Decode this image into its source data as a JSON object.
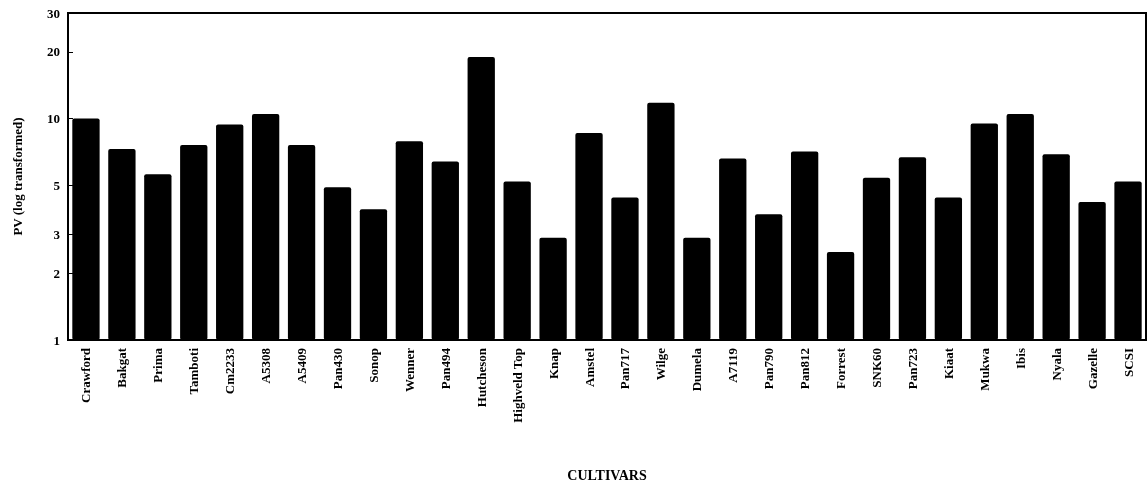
{
  "chart_data": {
    "type": "bar",
    "xlabel": "CULTIVARS",
    "ylabel": "PV (log transformed)",
    "categories": [
      "Crawford",
      "Bakgat",
      "Prima",
      "Tamboti",
      "Cm2233",
      "A5308",
      "A5409",
      "Pan430",
      "Sonop",
      "Wenner",
      "Pan494",
      "Hutcheson",
      "Highveld Top",
      "Knap",
      "Amstel",
      "Pan717",
      "Wilge",
      "Dumela",
      "A7119",
      "Pan790",
      "Pan812",
      "Forrest",
      "SNK60",
      "Pan723",
      "Kiaat",
      "Mukwa",
      "Ibis",
      "Nyala",
      "Gazelle",
      "SCSI"
    ],
    "values": [
      10.0,
      7.3,
      5.6,
      7.6,
      9.4,
      10.5,
      7.6,
      4.9,
      3.9,
      7.9,
      6.4,
      19.0,
      5.2,
      2.9,
      8.6,
      4.4,
      11.8,
      2.9,
      6.6,
      3.7,
      7.1,
      2.5,
      5.4,
      6.7,
      4.4,
      9.5,
      10.5,
      6.9,
      4.2,
      5.2
    ],
    "color": "#000000",
    "log": true,
    "ylim": [
      1,
      30
    ],
    "yticks": [
      1,
      2,
      3,
      5,
      10,
      20,
      30
    ],
    "grid": false
  }
}
